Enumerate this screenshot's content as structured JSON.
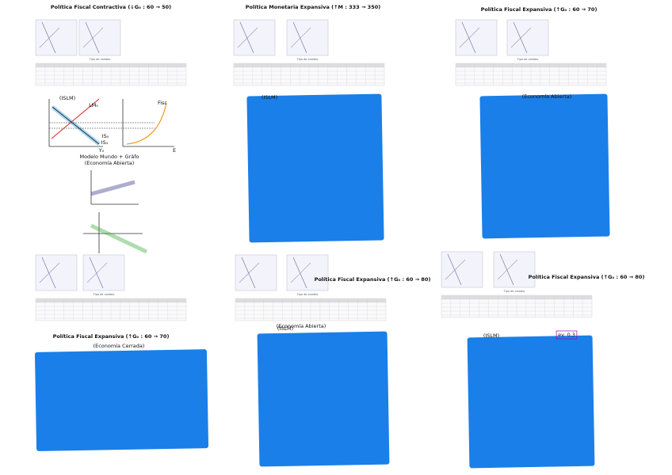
{
  "titles": [
    "Política Fiscal Contractiva (↓G₀ : 60 → 50)",
    "Política Monetaria Expansiva (↑M : 333 → 350)",
    "Política Fiscal Expansiva (↑G₀ : 60 → 70)",
    "Política Fiscal Expansiva (↑G₀ : 60 → 80)",
    "Política Fiscal Expansiva (↑G₀ : 60 → 80)",
    "Política Fiscal Expansiva (↑G₀ : 60 → 70)"
  ],
  "notes": [
    "(ISLM)",
    "LM₀",
    "IS₀",
    "IS₁",
    "Fisc",
    "Y₀",
    "E",
    "Modelo Mundo + Gráfo",
    "(Economía Abierta)",
    "(Economía Cerrada)",
    "(Economía Abierta)",
    "(Economía Abierta)",
    "(ISLM)",
    "(ISLM)",
    "(ISLM)",
    "ev. 0.3"
  ],
  "mini_caption": "Tipo de cambio"
}
